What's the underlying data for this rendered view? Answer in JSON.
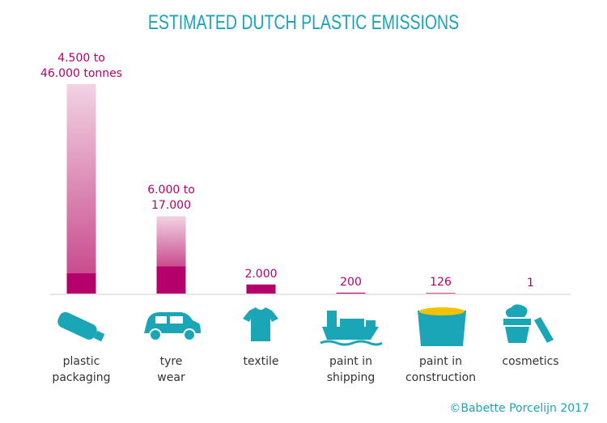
{
  "title": "ESTIMATED DUTCH PLASTIC EMISSIONS",
  "credit": "©Babette Porcelijn 2017",
  "chart_data": {
    "type": "range-bar",
    "categories": [
      "plastic\npackaging",
      "tyre\nwear",
      "textile",
      "paint in\nshipping",
      "paint in\nconstruction",
      "cosmetics"
    ],
    "values": [
      46000,
      17000,
      2000,
      200,
      126,
      1
    ],
    "low_values": [
      4500,
      6000,
      null,
      null,
      null,
      null
    ],
    "value_labels": [
      "4.500 to\n46.000 tonnes",
      "6.000 to\n17.000",
      "2.000",
      "200",
      "126",
      "1"
    ],
    "color": "#b5006b",
    "range_color": "#e8b3cf",
    "ylim": [
      0,
      46000
    ]
  }
}
